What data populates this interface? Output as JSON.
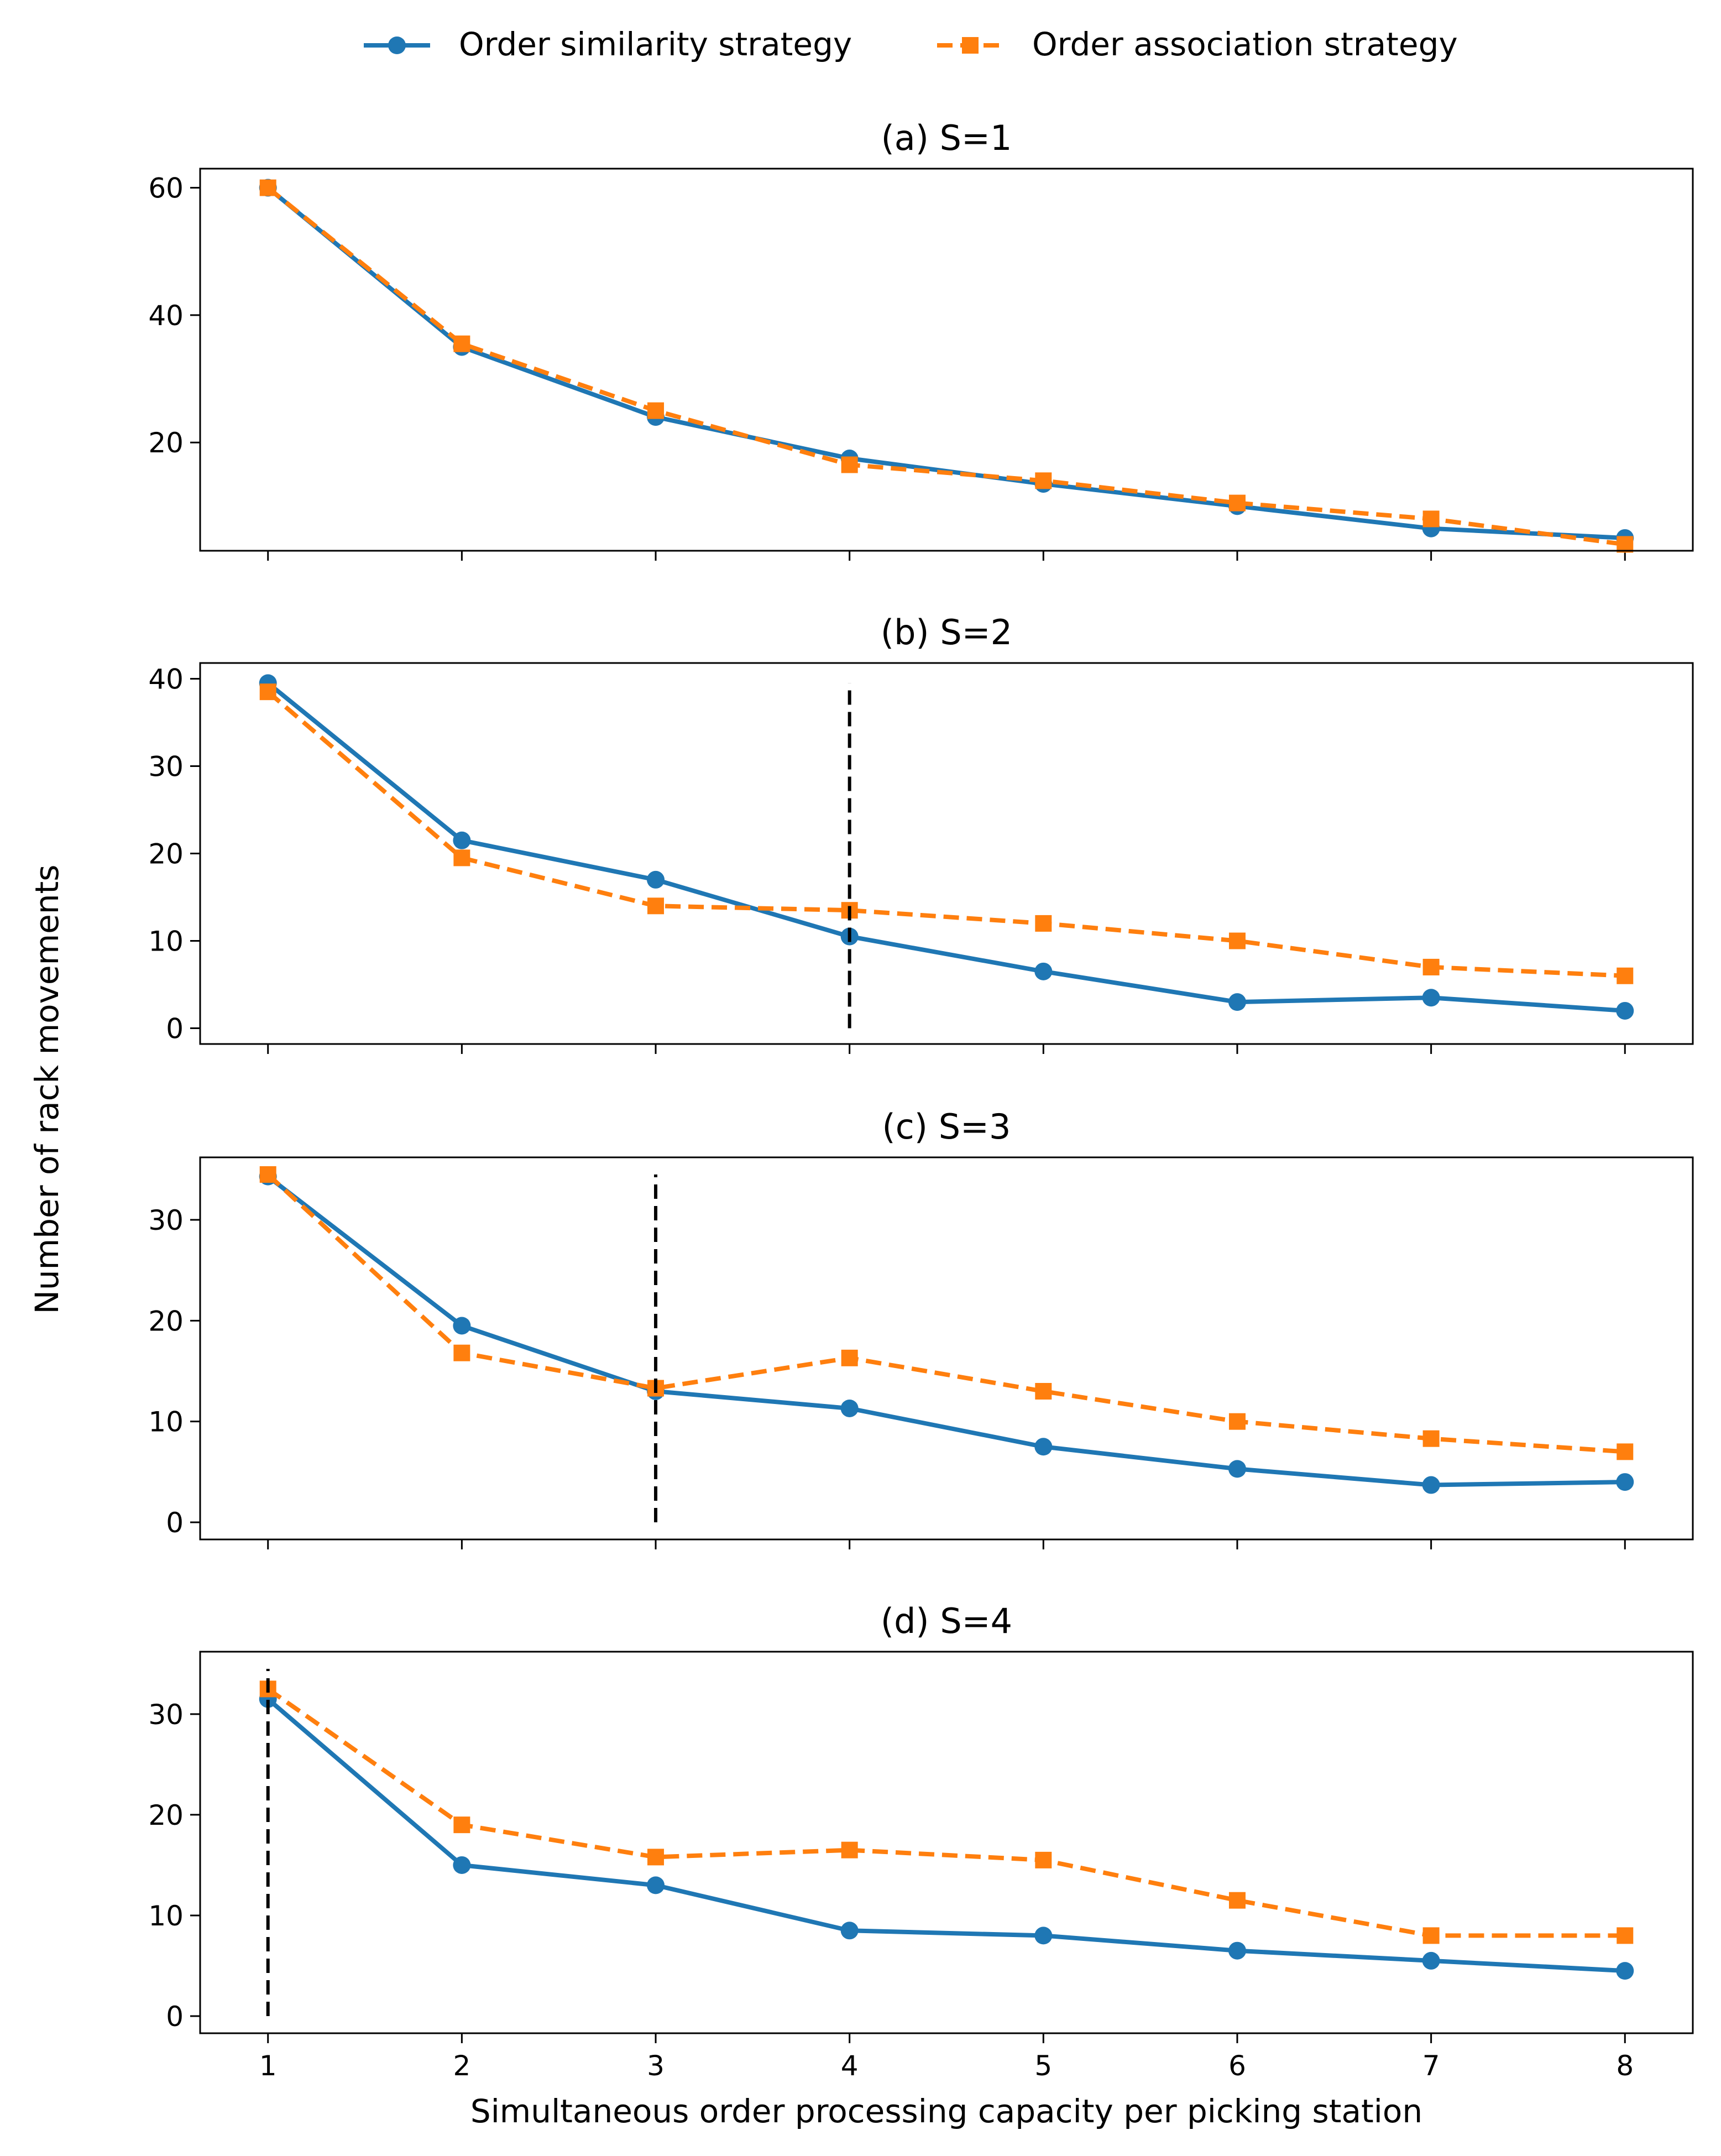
{
  "colors": {
    "series_1": "#1f77b4",
    "series_2": "#ff7f0e",
    "reference_line": "#000000"
  },
  "chart_data": {
    "type": "line",
    "xlabel": "Simultaneous order processing capacity per picking station",
    "ylabel": "Number of rack movements",
    "legend": {
      "placement": "top-center",
      "entries": [
        "Order similarity strategy",
        "Order association strategy"
      ]
    },
    "x": [
      1,
      2,
      3,
      4,
      5,
      6,
      7,
      8
    ],
    "xticks": [
      "1",
      "2",
      "3",
      "4",
      "5",
      "6",
      "7",
      "8"
    ],
    "xlim": [
      0.65,
      8.35
    ],
    "panels": [
      {
        "title": "(a) S=1",
        "ylim": [
          3,
          63
        ],
        "yticks": [
          20,
          40,
          60
        ],
        "vline": null,
        "series": [
          {
            "name": "Order similarity strategy",
            "marker": "circle",
            "linestyle": "solid",
            "values": [
              60,
              35,
              24,
              17.5,
              13.5,
              10,
              6.5,
              5
            ]
          },
          {
            "name": "Order association strategy",
            "marker": "square",
            "linestyle": "dashed",
            "values": [
              60,
              35.5,
              25,
              16.5,
              14,
              10.5,
              8,
              4
            ]
          }
        ]
      },
      {
        "title": "(b) S=2",
        "ylim": [
          -1.8,
          41.8
        ],
        "yticks": [
          0,
          10,
          20,
          30,
          40
        ],
        "vline": {
          "x": 4,
          "ymin": 0,
          "ymax": 39.5
        },
        "series": [
          {
            "name": "Order similarity strategy",
            "marker": "circle",
            "linestyle": "solid",
            "values": [
              39.5,
              21.5,
              17,
              10.5,
              6.5,
              3,
              3.5,
              2
            ]
          },
          {
            "name": "Order association strategy",
            "marker": "square",
            "linestyle": "dashed",
            "values": [
              38.5,
              19.5,
              14,
              13.5,
              12,
              10,
              7,
              6
            ]
          }
        ]
      },
      {
        "title": "(c) S=3",
        "ylim": [
          -1.7,
          36.2
        ],
        "yticks": [
          0,
          10,
          20,
          30
        ],
        "vline": {
          "x": 3,
          "ymin": 0,
          "ymax": 34.5
        },
        "series": [
          {
            "name": "Order similarity strategy",
            "marker": "circle",
            "linestyle": "solid",
            "values": [
              34.3,
              19.5,
              13,
              11.3,
              7.5,
              5.3,
              3.7,
              4
            ]
          },
          {
            "name": "Order association strategy",
            "marker": "square",
            "linestyle": "dashed",
            "values": [
              34.5,
              16.8,
              13.3,
              16.3,
              13,
              10,
              8.3,
              7
            ]
          }
        ]
      },
      {
        "title": "(d) S=4",
        "ylim": [
          -1.7,
          36.2
        ],
        "yticks": [
          0,
          10,
          20,
          30
        ],
        "vline": {
          "x": 1,
          "ymin": 0,
          "ymax": 34.5
        },
        "series": [
          {
            "name": "Order similarity strategy",
            "marker": "circle",
            "linestyle": "solid",
            "values": [
              31.5,
              15,
              13,
              8.5,
              8,
              6.5,
              5.5,
              4.5
            ]
          },
          {
            "name": "Order association strategy",
            "marker": "square",
            "linestyle": "dashed",
            "values": [
              32.5,
              19,
              15.8,
              16.5,
              15.5,
              11.5,
              8,
              8
            ]
          }
        ]
      }
    ]
  }
}
